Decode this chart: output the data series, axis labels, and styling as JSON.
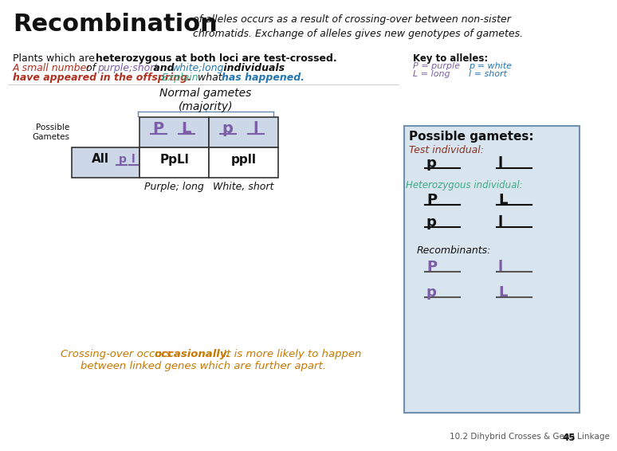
{
  "bg_color": "#ffffff",
  "purple_color": "#7b5ea7",
  "red_color": "#b03020",
  "blue_color": "#2475b0",
  "teal_color": "#3aaa88",
  "orange_color": "#c87800",
  "lightblue_fill": "#ccd8e8",
  "box_outline": "#7090b0",
  "right_box_bg": "#d8e4ee",
  "cell1": "PpLl",
  "cell2": "ppll",
  "label1": "Purple; long",
  "label2": "White, short",
  "footer": "10.2 Dihybrid Crosses & Gene Linkage",
  "footer_num": "45"
}
